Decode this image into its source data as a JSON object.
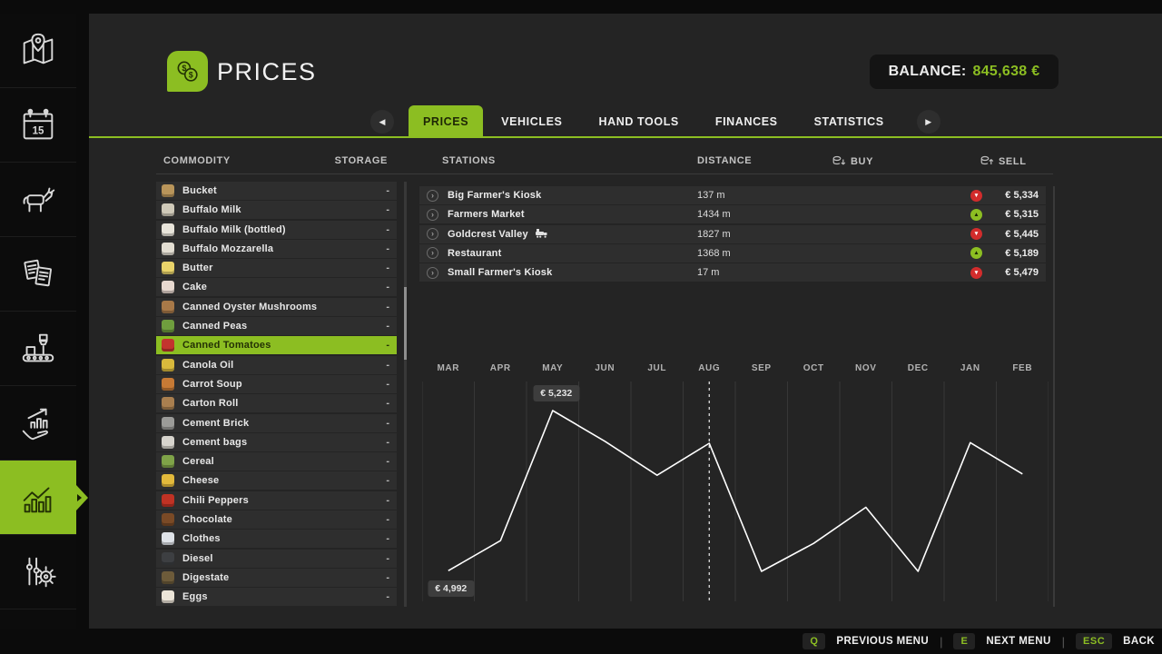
{
  "colors": {
    "accent": "#8CBE22",
    "red": "#D22C2C",
    "line": "#FFFFFF"
  },
  "header": {
    "title": "PRICES",
    "balance_label": "BALANCE:",
    "balance_value": "845,638 €"
  },
  "tabs": {
    "items": [
      "PRICES",
      "VEHICLES",
      "HAND TOOLS",
      "FINANCES",
      "STATISTICS"
    ],
    "active_index": 0
  },
  "columns": {
    "commodity": "COMMODITY",
    "storage": "STORAGE",
    "stations": "STATIONS",
    "distance": "DISTANCE",
    "buy": "BUY",
    "sell": "SELL"
  },
  "sidebar": {
    "active_index": 6,
    "items": [
      {
        "icon": "map"
      },
      {
        "icon": "calendar-15"
      },
      {
        "icon": "animals"
      },
      {
        "icon": "contracts"
      },
      {
        "icon": "production"
      },
      {
        "icon": "finances"
      },
      {
        "icon": "statistics"
      },
      {
        "icon": "settings"
      }
    ]
  },
  "commodities": {
    "selected_index": 8,
    "items": [
      {
        "name": "Bucket",
        "storage": "-",
        "icon_color": "#b9955a"
      },
      {
        "name": "Buffalo Milk",
        "storage": "-",
        "icon_color": "#cfc9b8"
      },
      {
        "name": "Buffalo Milk (bottled)",
        "storage": "-",
        "icon_color": "#e8e4da"
      },
      {
        "name": "Buffalo Mozzarella",
        "storage": "-",
        "icon_color": "#e3ded2"
      },
      {
        "name": "Butter",
        "storage": "-",
        "icon_color": "#e9d36a"
      },
      {
        "name": "Cake",
        "storage": "-",
        "icon_color": "#e8d9d0"
      },
      {
        "name": "Canned Oyster Mushrooms",
        "storage": "-",
        "icon_color": "#a87948"
      },
      {
        "name": "Canned Peas",
        "storage": "-",
        "icon_color": "#6f9e3e"
      },
      {
        "name": "Canned Tomatoes",
        "storage": "-",
        "icon_color": "#c3342e"
      },
      {
        "name": "Canola Oil",
        "storage": "-",
        "icon_color": "#d8b93c"
      },
      {
        "name": "Carrot Soup",
        "storage": "-",
        "icon_color": "#c77a35"
      },
      {
        "name": "Carton Roll",
        "storage": "-",
        "icon_color": "#a97f4f"
      },
      {
        "name": "Cement Brick",
        "storage": "-",
        "icon_color": "#9b9b98"
      },
      {
        "name": "Cement bags",
        "storage": "-",
        "icon_color": "#d7d4cd"
      },
      {
        "name": "Cereal",
        "storage": "-",
        "icon_color": "#7fa348"
      },
      {
        "name": "Cheese",
        "storage": "-",
        "icon_color": "#e2b93b"
      },
      {
        "name": "Chili Peppers",
        "storage": "-",
        "icon_color": "#c03224"
      },
      {
        "name": "Chocolate",
        "storage": "-",
        "icon_color": "#7a4a26"
      },
      {
        "name": "Clothes",
        "storage": "-",
        "icon_color": "#dfe3e8"
      },
      {
        "name": "Diesel",
        "storage": "-",
        "icon_color": "#3d3f42"
      },
      {
        "name": "Digestate",
        "storage": "-",
        "icon_color": "#6d5b3a"
      },
      {
        "name": "Eggs",
        "storage": "-",
        "icon_color": "#ece5d8"
      }
    ]
  },
  "stations": [
    {
      "name": "Big Farmer's Kiosk",
      "has_train": false,
      "distance": "137 m",
      "trend": "down",
      "price": "€ 5,334"
    },
    {
      "name": "Farmers Market",
      "has_train": false,
      "distance": "1434 m",
      "trend": "up",
      "price": "€ 5,315"
    },
    {
      "name": "Goldcrest Valley",
      "has_train": true,
      "distance": "1827 m",
      "trend": "down",
      "price": "€ 5,445"
    },
    {
      "name": "Restaurant",
      "has_train": false,
      "distance": "1368 m",
      "trend": "up",
      "price": "€ 5,189"
    },
    {
      "name": "Small Farmer's Kiosk",
      "has_train": false,
      "distance": "17 m",
      "trend": "down",
      "price": "€ 5,479"
    }
  ],
  "chart_data": {
    "type": "line",
    "title": "Canned Tomatoes price over 12 months",
    "categories": [
      "MAR",
      "APR",
      "MAY",
      "JUN",
      "JUL",
      "AUG",
      "SEP",
      "OCT",
      "NOV",
      "DEC",
      "JAN",
      "FEB"
    ],
    "values": [
      4992,
      5037,
      5232,
      5186,
      5135,
      5183,
      4991,
      5033,
      5087,
      4991,
      5184,
      5137
    ],
    "ylim": [
      4950,
      5280
    ],
    "grid": "vertical-month-boundaries",
    "current_month_index": 5,
    "annotations": [
      {
        "label": "€ 5,232",
        "index": 2,
        "placement": "above"
      },
      {
        "label": "€ 4,992",
        "index": 0,
        "placement": "below"
      }
    ]
  },
  "footer": {
    "controls": [
      {
        "key": "Q",
        "label": "PREVIOUS MENU"
      },
      {
        "key": "E",
        "label": "NEXT MENU"
      },
      {
        "key": "ESC",
        "label": "BACK"
      }
    ]
  }
}
